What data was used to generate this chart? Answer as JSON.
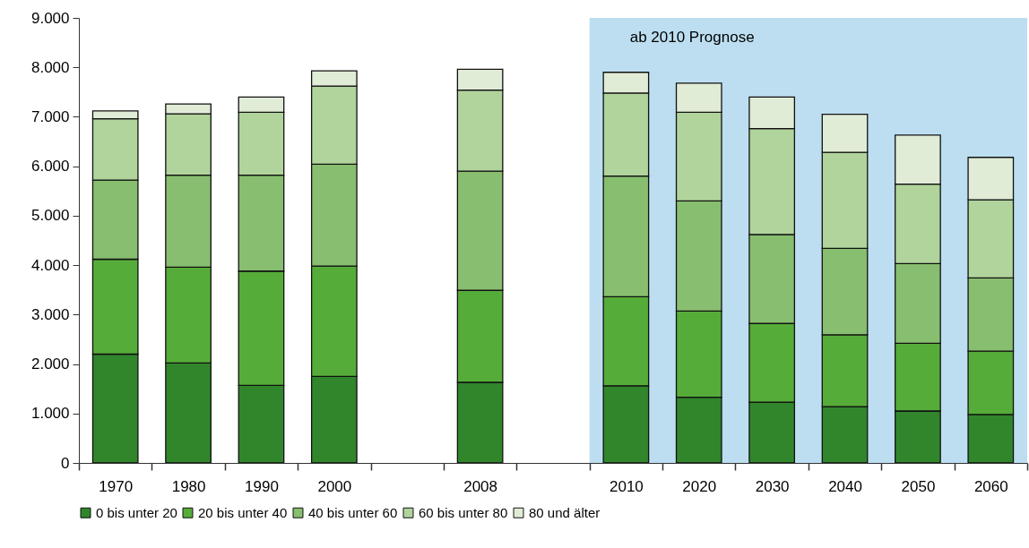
{
  "chart_data": {
    "type": "bar",
    "stacked": true,
    "categories": [
      "1970",
      "1980",
      "1990",
      "2000",
      null,
      "2008",
      null,
      "2010",
      "2020",
      "2030",
      "2040",
      "2050",
      "2060"
    ],
    "series": [
      {
        "name": "0 bis unter 20",
        "color": "#31862c",
        "values": [
          2200,
          2020,
          1570,
          1750,
          null,
          1630,
          null,
          1560,
          1330,
          1230,
          1140,
          1050,
          980
        ]
      },
      {
        "name": "20 bis unter 40",
        "color": "#56ac38",
        "values": [
          1920,
          1940,
          2310,
          2230,
          null,
          1860,
          null,
          1800,
          1740,
          1590,
          1450,
          1370,
          1280
        ]
      },
      {
        "name": "40 bis unter 60",
        "color": "#88be6f",
        "values": [
          1600,
          1860,
          1940,
          2060,
          null,
          2410,
          null,
          2440,
          2230,
          1800,
          1750,
          1610,
          1480
        ]
      },
      {
        "name": "60 bis unter 80",
        "color": "#b0d49b",
        "values": [
          1240,
          1240,
          1270,
          1580,
          null,
          1640,
          null,
          1680,
          1790,
          2140,
          1940,
          1610,
          1580
        ]
      },
      {
        "name": "80 und älter",
        "color": "#e0ecd6",
        "values": [
          160,
          200,
          310,
          310,
          null,
          420,
          null,
          420,
          590,
          640,
          770,
          990,
          860
        ]
      }
    ],
    "ylim": [
      0,
      9000
    ],
    "yticks": [
      {
        "value": 0,
        "label": "0"
      },
      {
        "value": 1000,
        "label": "1.000"
      },
      {
        "value": 2000,
        "label": "2.000"
      },
      {
        "value": 3000,
        "label": "3.000"
      },
      {
        "value": 4000,
        "label": "4.000"
      },
      {
        "value": 5000,
        "label": "5.000"
      },
      {
        "value": 6000,
        "label": "6.000"
      },
      {
        "value": 7000,
        "label": "7.000"
      },
      {
        "value": 8000,
        "label": "8.000"
      },
      {
        "value": 9000,
        "label": "9.000"
      }
    ],
    "bands": [
      {
        "axis": "x",
        "from": "2010",
        "to": "2060",
        "label": "ab 2010 Prognose",
        "color": "#bcdef0"
      }
    ],
    "grid": false,
    "legend": "bottom"
  }
}
